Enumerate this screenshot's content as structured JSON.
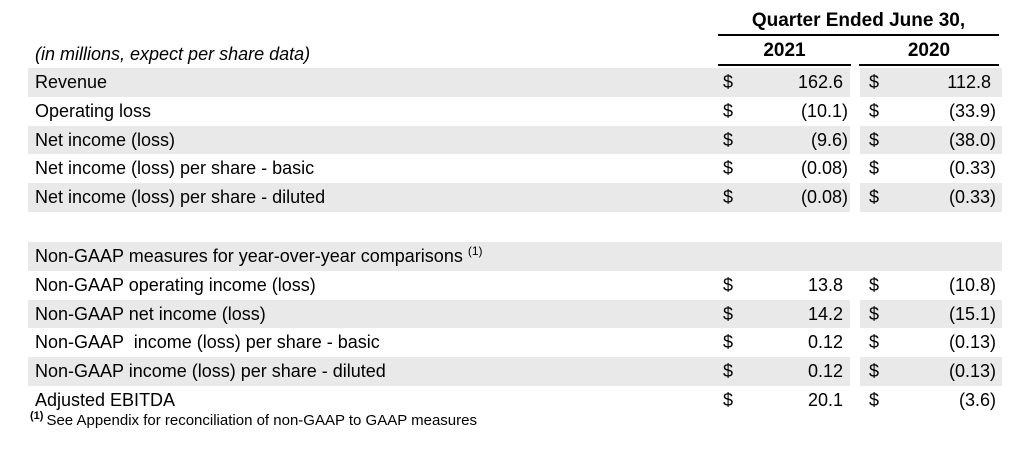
{
  "colors": {
    "row_shade": "#e9e9e9",
    "text": "#000000",
    "rule": "#000000"
  },
  "header": {
    "period": "Quarter Ended June 30,",
    "unit_note": "(in millions, expect per share data)",
    "year_2021": "2021",
    "year_2020": "2020"
  },
  "currency": "$",
  "gaap": {
    "rows": [
      {
        "label": "Revenue",
        "v2021": "162.6",
        "v2020": "112.8"
      },
      {
        "label": "Operating loss",
        "v2021": "(10.1)",
        "v2020": "(33.9)"
      },
      {
        "label": "Net income (loss)",
        "v2021": "(9.6)",
        "v2020": "(38.0)"
      },
      {
        "label": "Net income (loss) per share - basic",
        "v2021": "(0.08)",
        "v2020": "(0.33)"
      },
      {
        "label": "Net income (loss) per share - diluted",
        "v2021": "(0.08)",
        "v2020": "(0.33)"
      }
    ]
  },
  "section": {
    "title": "Non-GAAP measures for year-over-year comparisons",
    "superscript": "(1)"
  },
  "nongaap": {
    "rows": [
      {
        "label": "Non-GAAP operating income (loss)",
        "v2021": "13.8",
        "v2020": "(10.8)"
      },
      {
        "label": "Non-GAAP net income (loss)",
        "v2021": "14.2",
        "v2020": "(15.1)"
      },
      {
        "label": "Non-GAAP  income (loss) per share - basic",
        "v2021": "0.12",
        "v2020": "(0.13)"
      },
      {
        "label": "Non-GAAP income (loss) per share - diluted",
        "v2021": "0.12",
        "v2020": "(0.13)"
      },
      {
        "label": "Adjusted EBITDA",
        "v2021": "20.1",
        "v2020": "(3.6)"
      }
    ]
  },
  "footnote": {
    "marker": "(1)",
    "text": "See Appendix for reconciliation of non-GAAP to GAAP measures"
  }
}
